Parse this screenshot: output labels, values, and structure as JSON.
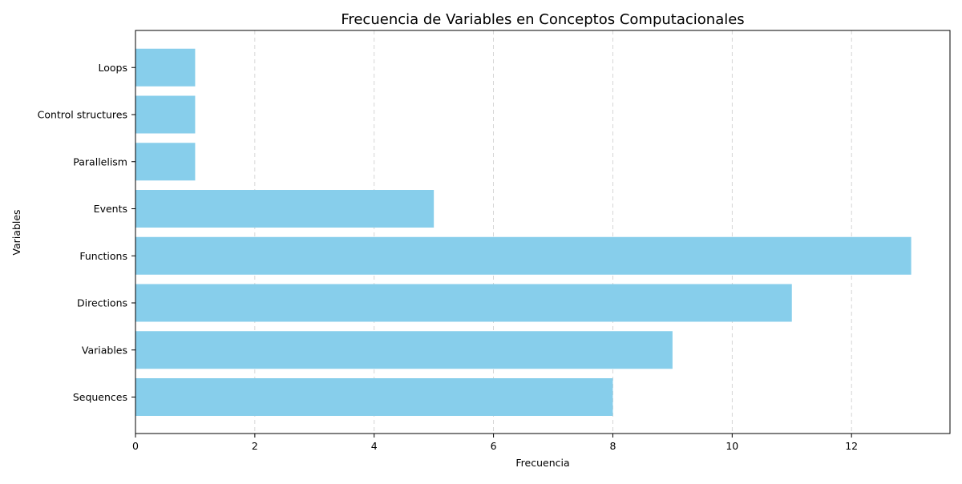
{
  "chart_data": {
    "type": "bar",
    "orientation": "horizontal",
    "title": "Frecuencia de Variables en Conceptos Computacionales",
    "xlabel": "Frecuencia",
    "ylabel": "Variables",
    "categories": [
      "Sequences",
      "Variables",
      "Directions",
      "Functions",
      "Events",
      "Parallelism",
      "Control structures",
      "Loops"
    ],
    "values": [
      8,
      9,
      11,
      13,
      5,
      1,
      1,
      1
    ],
    "xlim": [
      0,
      13.65
    ],
    "xticks": [
      0,
      2,
      4,
      6,
      8,
      10,
      12
    ],
    "grid": "x-axis dashed",
    "bar_color": "#87ceeb"
  }
}
